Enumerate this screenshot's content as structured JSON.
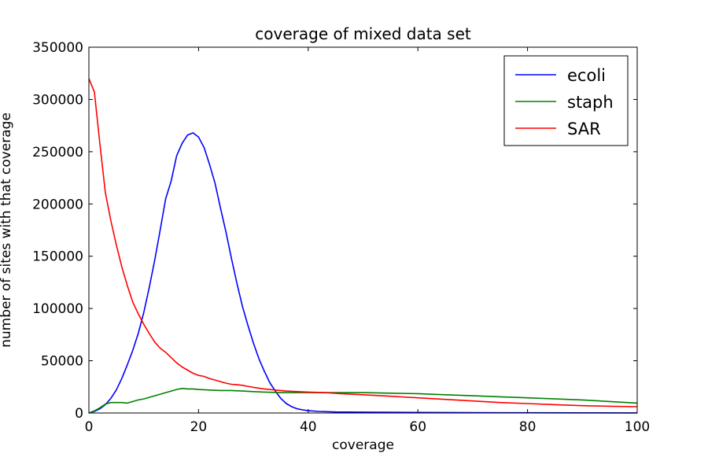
{
  "chart_data": {
    "type": "line",
    "title": "coverage of mixed data set",
    "xlabel": "coverage",
    "ylabel": "number of sites with that coverage",
    "xlim": [
      0,
      100
    ],
    "ylim": [
      0,
      350000
    ],
    "xticks": [
      "0",
      "20",
      "40",
      "60",
      "80",
      "100"
    ],
    "yticks": [
      "0",
      "50000",
      "100000",
      "150000",
      "200000",
      "250000",
      "300000",
      "350000"
    ],
    "legend_position": "top-right",
    "series": [
      {
        "name": "ecoli",
        "color": "#0000ff",
        "points": [
          [
            0,
            0
          ],
          [
            1,
            1500
          ],
          [
            2,
            4000
          ],
          [
            3,
            8000
          ],
          [
            4,
            14000
          ],
          [
            5,
            22000
          ],
          [
            6,
            33000
          ],
          [
            7,
            46000
          ],
          [
            8,
            60000
          ],
          [
            9,
            76000
          ],
          [
            10,
            96000
          ],
          [
            11,
            120000
          ],
          [
            12,
            146000
          ],
          [
            13,
            175000
          ],
          [
            14,
            205000
          ],
          [
            15,
            222000
          ],
          [
            16,
            246000
          ],
          [
            17,
            258000
          ],
          [
            18,
            266000
          ],
          [
            19,
            268000
          ],
          [
            20,
            264000
          ],
          [
            21,
            254000
          ],
          [
            22,
            238000
          ],
          [
            23,
            220000
          ],
          [
            24,
            196000
          ],
          [
            25,
            173000
          ],
          [
            26,
            148000
          ],
          [
            27,
            124000
          ],
          [
            28,
            102000
          ],
          [
            29,
            84000
          ],
          [
            30,
            67000
          ],
          [
            31,
            52000
          ],
          [
            32,
            40000
          ],
          [
            33,
            29000
          ],
          [
            34,
            21000
          ],
          [
            35,
            14000
          ],
          [
            36,
            9000
          ],
          [
            37,
            6000
          ],
          [
            38,
            4000
          ],
          [
            39,
            3000
          ],
          [
            40,
            2200
          ],
          [
            42,
            1500
          ],
          [
            45,
            1000
          ],
          [
            50,
            800
          ],
          [
            60,
            500
          ],
          [
            70,
            300
          ],
          [
            80,
            200
          ],
          [
            90,
            150
          ],
          [
            100,
            100
          ]
        ]
      },
      {
        "name": "staph",
        "color": "#008000",
        "points": [
          [
            0,
            0
          ],
          [
            1,
            2000
          ],
          [
            2,
            5000
          ],
          [
            3,
            8500
          ],
          [
            4,
            10000
          ],
          [
            5,
            10000
          ],
          [
            6,
            10000
          ],
          [
            7,
            9500
          ],
          [
            8,
            11000
          ],
          [
            9,
            12500
          ],
          [
            10,
            13500
          ],
          [
            11,
            15000
          ],
          [
            12,
            16500
          ],
          [
            13,
            18000
          ],
          [
            14,
            19500
          ],
          [
            15,
            21000
          ],
          [
            16,
            22500
          ],
          [
            17,
            23500
          ],
          [
            18,
            23000
          ],
          [
            19,
            23000
          ],
          [
            20,
            22500
          ],
          [
            22,
            22000
          ],
          [
            24,
            21500
          ],
          [
            26,
            21500
          ],
          [
            28,
            21000
          ],
          [
            30,
            20500
          ],
          [
            32,
            20000
          ],
          [
            35,
            19500
          ],
          [
            38,
            19500
          ],
          [
            40,
            19500
          ],
          [
            45,
            19500
          ],
          [
            50,
            19500
          ],
          [
            55,
            19000
          ],
          [
            60,
            18500
          ],
          [
            65,
            17500
          ],
          [
            70,
            16500
          ],
          [
            75,
            15500
          ],
          [
            80,
            14500
          ],
          [
            85,
            13500
          ],
          [
            90,
            12500
          ],
          [
            95,
            11000
          ],
          [
            100,
            9500
          ]
        ]
      },
      {
        "name": "SAR",
        "color": "#ff0000",
        "points": [
          [
            0,
            320000
          ],
          [
            1,
            307000
          ],
          [
            2,
            258000
          ],
          [
            3,
            211000
          ],
          [
            4,
            184000
          ],
          [
            5,
            161000
          ],
          [
            6,
            140000
          ],
          [
            7,
            122000
          ],
          [
            8,
            106000
          ],
          [
            9,
            95000
          ],
          [
            10,
            85000
          ],
          [
            11,
            76000
          ],
          [
            12,
            68000
          ],
          [
            13,
            62000
          ],
          [
            14,
            58000
          ],
          [
            15,
            53000
          ],
          [
            16,
            48000
          ],
          [
            17,
            44000
          ],
          [
            18,
            41000
          ],
          [
            19,
            38000
          ],
          [
            20,
            36000
          ],
          [
            21,
            35000
          ],
          [
            22,
            33000
          ],
          [
            23,
            31500
          ],
          [
            24,
            30000
          ],
          [
            25,
            28500
          ],
          [
            26,
            27500
          ],
          [
            27,
            27000
          ],
          [
            28,
            26500
          ],
          [
            29,
            25500
          ],
          [
            30,
            24500
          ],
          [
            32,
            23000
          ],
          [
            34,
            22000
          ],
          [
            36,
            21000
          ],
          [
            38,
            20500
          ],
          [
            40,
            20000
          ],
          [
            43,
            19500
          ],
          [
            46,
            18500
          ],
          [
            50,
            17500
          ],
          [
            55,
            16000
          ],
          [
            60,
            14500
          ],
          [
            65,
            13000
          ],
          [
            70,
            11500
          ],
          [
            75,
            10000
          ],
          [
            80,
            9000
          ],
          [
            85,
            8000
          ],
          [
            90,
            7000
          ],
          [
            95,
            6500
          ],
          [
            100,
            6000
          ]
        ]
      }
    ]
  }
}
